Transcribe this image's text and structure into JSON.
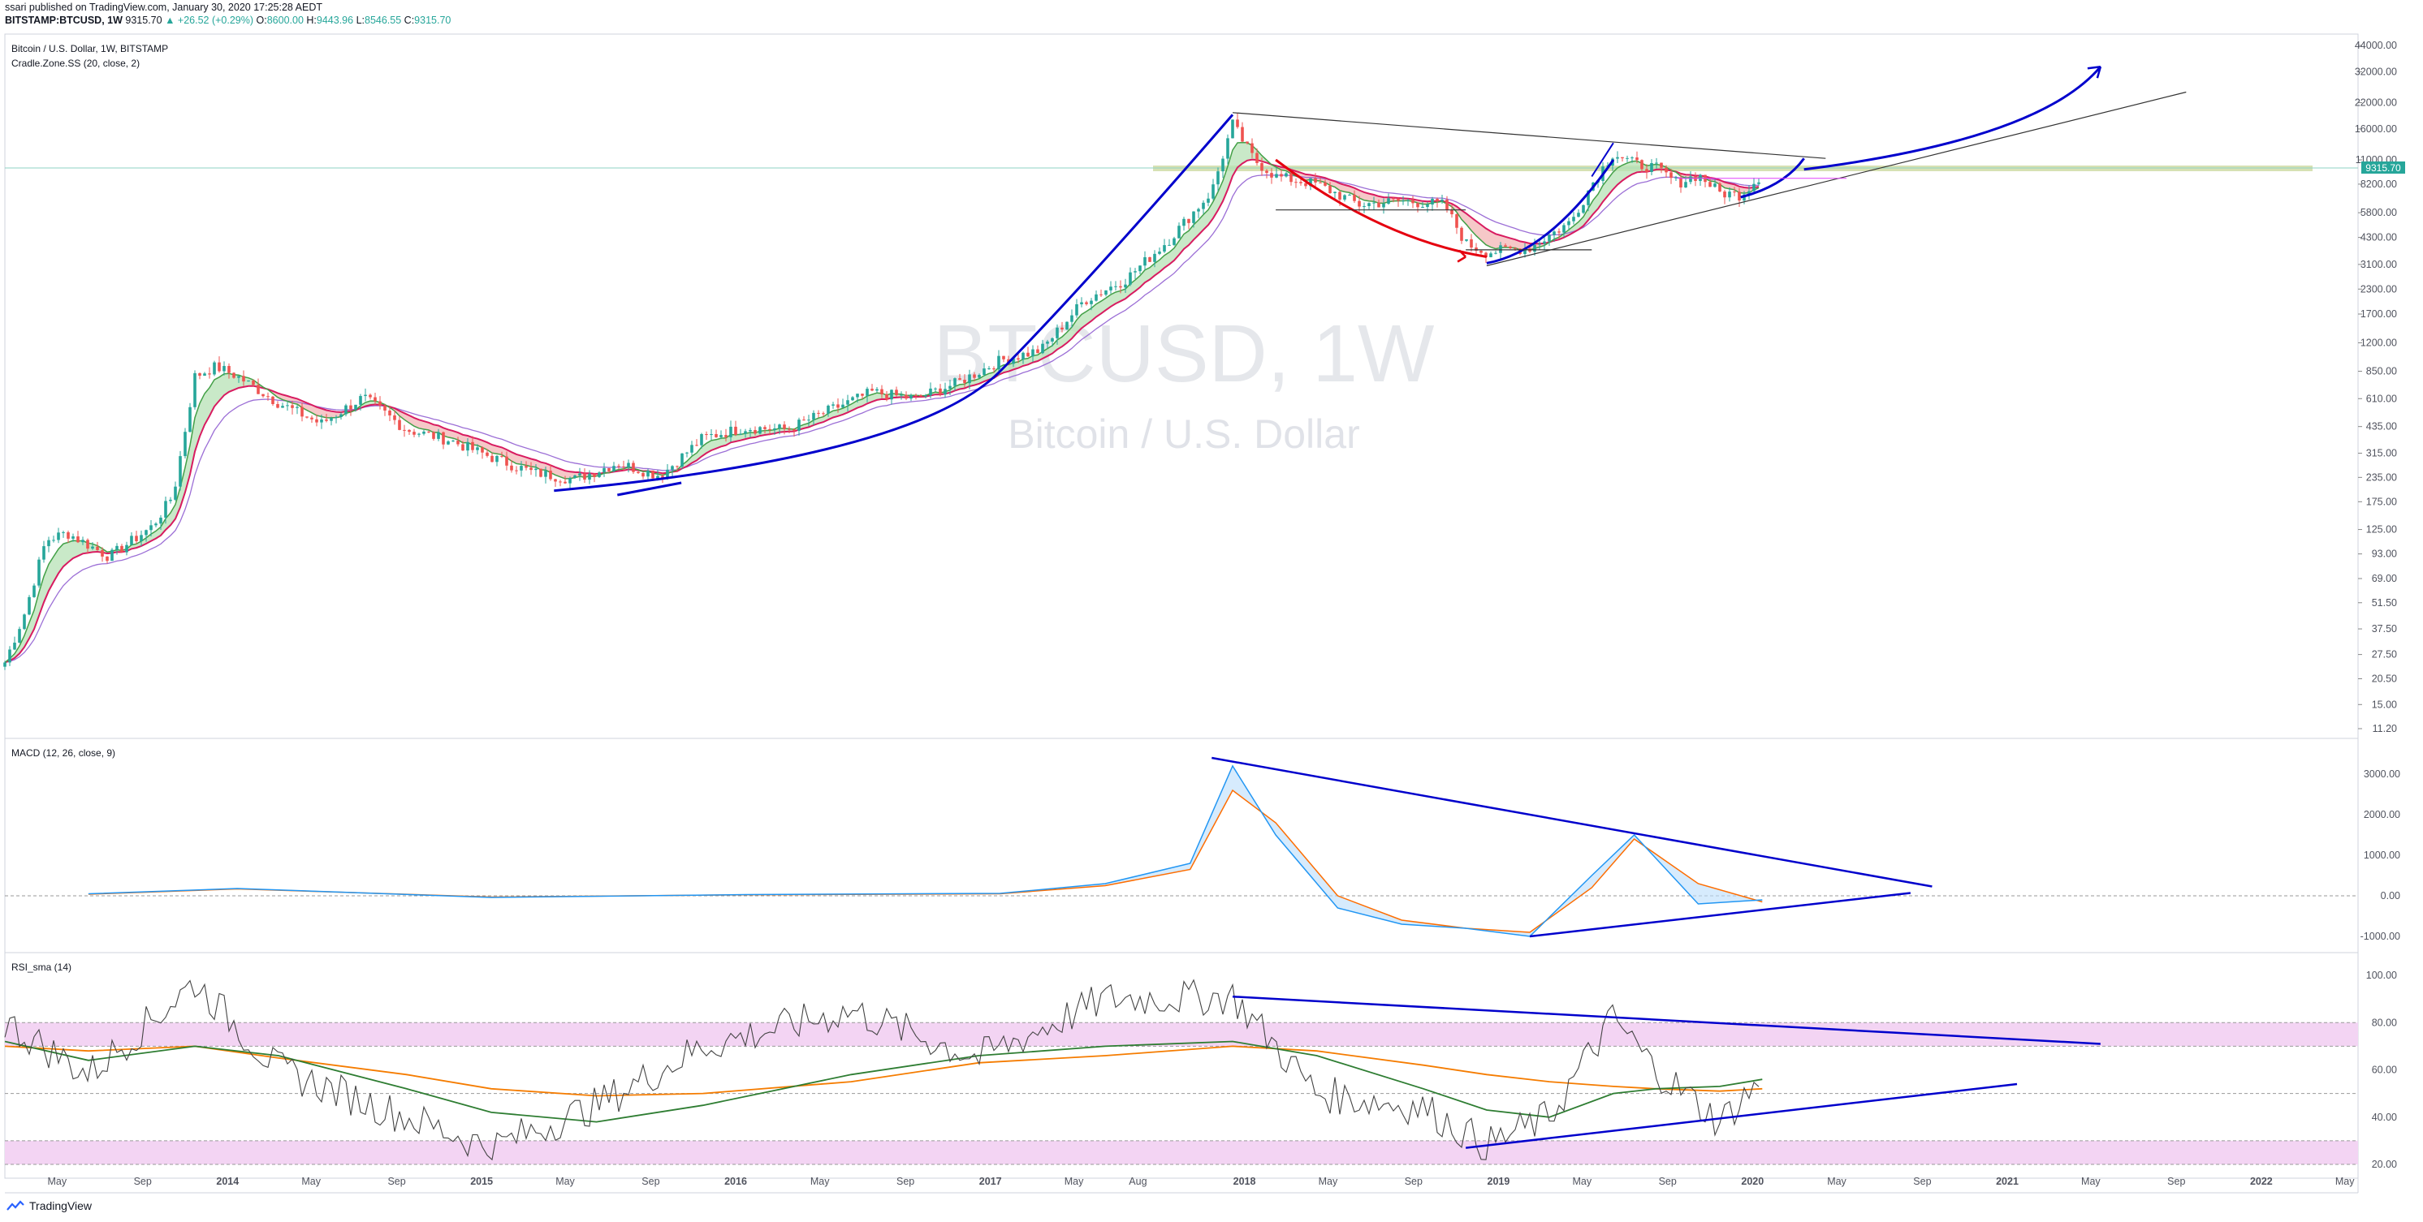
{
  "header": {
    "publisher_line": "ssari published on TradingView.com, January 30, 2020 17:25:28 AEDT",
    "symbol": "BITSTAMP:BTCUSD, 1W",
    "last": "9315.70",
    "change": "▲ +26.52 (+0.29%)",
    "o_label": "O:",
    "o": "8600.00",
    "h_label": "H:",
    "h": "9443.96",
    "l_label": "L:",
    "l": "8546.55",
    "c_label": "C:",
    "c": "9315.70"
  },
  "main_pane": {
    "title": "Bitcoin / U.S. Dollar, 1W, BITSTAMP",
    "indicator": "Cradle.Zone.SS (20, close, 2)",
    "watermark_symbol": "BTCUSD, 1W",
    "watermark_name": "Bitcoin / U.S. Dollar",
    "price_badge": "9315.70",
    "y_ticks": [
      "44000.00",
      "32000.00",
      "22000.00",
      "16000.00",
      "11000.00",
      "8200.00",
      "5800.00",
      "4300.00",
      "3100.00",
      "2300.00",
      "1700.00",
      "1200.00",
      "850.00",
      "610.00",
      "435.00",
      "315.00",
      "235.00",
      "175.00",
      "125.00",
      "93.00",
      "69.00",
      "51.50",
      "37.50",
      "27.50",
      "20.50",
      "15.00",
      "11.20"
    ]
  },
  "macd_pane": {
    "title": "MACD (12, 26, close, 9)",
    "y_ticks": [
      "3000.00",
      "2000.00",
      "1000.00",
      "0.00",
      "-1000.00"
    ]
  },
  "rsi_pane": {
    "title": "RSI_sma (14)",
    "y_ticks": [
      "100.00",
      "80.00",
      "60.00",
      "40.00",
      "20.00"
    ]
  },
  "x_axis": {
    "ticks": [
      "May",
      "Sep",
      "2014",
      "May",
      "Sep",
      "2015",
      "May",
      "Sep",
      "2016",
      "May",
      "Sep",
      "2017",
      "May",
      "Aug",
      "2018",
      "May",
      "Sep",
      "2019",
      "May",
      "Sep",
      "2020",
      "May",
      "Sep",
      "2021",
      "May",
      "Sep",
      "2022",
      "May"
    ]
  },
  "footer": {
    "brand": "TradingView"
  },
  "colors": {
    "up": "#26a69a",
    "down": "#ef5350",
    "trend_blue": "#0000cc",
    "trend_red": "#e5000f",
    "macd_line": "#2196f3",
    "signal_line": "#ff6d00",
    "rsi_line": "#444444",
    "rsi_ma_orange": "#f57c00",
    "rsi_ma_green": "#2e7d32",
    "rsi_band": "#f3d4f3"
  },
  "chart_data": {
    "type": "candlestick",
    "title": "Bitcoin / U.S. Dollar, 1W, BITSTAMP",
    "y_scale": "log",
    "ylim": [
      11.2,
      44000
    ],
    "x_range": [
      "2013-02",
      "2022-05"
    ],
    "last_close": 9315.7,
    "open": 8600.0,
    "high": 9443.96,
    "low": 8546.55,
    "close": 9315.7,
    "price_path": {
      "dates": [
        "2013-02",
        "2013-03",
        "2013-04",
        "2013-05",
        "2013-07",
        "2013-09",
        "2013-10",
        "2013-11",
        "2013-12",
        "2014-01",
        "2014-03",
        "2014-05",
        "2014-07",
        "2014-09",
        "2014-11",
        "2015-01",
        "2015-03",
        "2015-05",
        "2015-07",
        "2015-09",
        "2015-11",
        "2016-01",
        "2016-03",
        "2016-05",
        "2016-07",
        "2016-09",
        "2016-11",
        "2017-01",
        "2017-03",
        "2017-05",
        "2017-07",
        "2017-09",
        "2017-11",
        "2017-12",
        "2018-01",
        "2018-02",
        "2018-04",
        "2018-06",
        "2018-08",
        "2018-10",
        "2018-11",
        "2018-12",
        "2019-02",
        "2019-04",
        "2019-05",
        "2019-06",
        "2019-07",
        "2019-08",
        "2019-09",
        "2019-10",
        "2019-11",
        "2019-12",
        "2020-01"
      ],
      "close": [
        25,
        45,
        110,
        120,
        90,
        130,
        190,
        800,
        900,
        800,
        580,
        450,
        620,
        420,
        370,
        300,
        250,
        230,
        280,
        240,
        380,
        430,
        420,
        530,
        660,
        610,
        740,
        970,
        1100,
        2000,
        2600,
        4200,
        7500,
        17000,
        11000,
        9000,
        8200,
        6400,
        6700,
        6400,
        4000,
        3600,
        3800,
        5200,
        8200,
        12000,
        10500,
        10000,
        8300,
        9200,
        7400,
        7200,
        9300
      ]
    },
    "macd": {
      "dates": [
        "2013-06",
        "2014-01",
        "2015-01",
        "2016-01",
        "2017-01",
        "2017-06",
        "2017-10",
        "2017-12",
        "2018-02",
        "2018-05",
        "2018-08",
        "2018-11",
        "2019-02",
        "2019-05",
        "2019-07",
        "2019-10",
        "2020-01"
      ],
      "macd": [
        50,
        180,
        -40,
        30,
        60,
        300,
        800,
        3200,
        1500,
        -300,
        -700,
        -800,
        -1000,
        500,
        1500,
        -200,
        -100
      ],
      "signal": [
        40,
        170,
        -30,
        25,
        50,
        250,
        650,
        2600,
        1800,
        0,
        -600,
        -800,
        -900,
        200,
        1400,
        300,
        -150
      ]
    },
    "rsi": {
      "dates": [
        "2013-02",
        "2013-06",
        "2013-11",
        "2014-03",
        "2014-09",
        "2015-01",
        "2015-06",
        "2015-11",
        "2016-06",
        "2016-12",
        "2017-06",
        "2017-12",
        "2018-04",
        "2018-09",
        "2018-12",
        "2019-03",
        "2019-06",
        "2019-08",
        "2019-11",
        "2020-01"
      ],
      "rsi": [
        80,
        58,
        97,
        60,
        40,
        27,
        45,
        70,
        85,
        65,
        90,
        91,
        50,
        44,
        28,
        40,
        82,
        60,
        38,
        56
      ],
      "ma_orange": [
        70,
        68,
        70,
        65,
        58,
        52,
        49,
        50,
        55,
        63,
        66,
        70,
        68,
        62,
        58,
        55,
        53,
        52,
        51,
        52
      ],
      "ma_green": [
        72,
        64,
        70,
        66,
        52,
        42,
        38,
        45,
        58,
        66,
        70,
        72,
        66,
        52,
        43,
        40,
        50,
        52,
        53,
        56
      ]
    },
    "rsi_band_upper": [
      70,
      80
    ],
    "rsi_band_lower": [
      20,
      30
    ]
  }
}
